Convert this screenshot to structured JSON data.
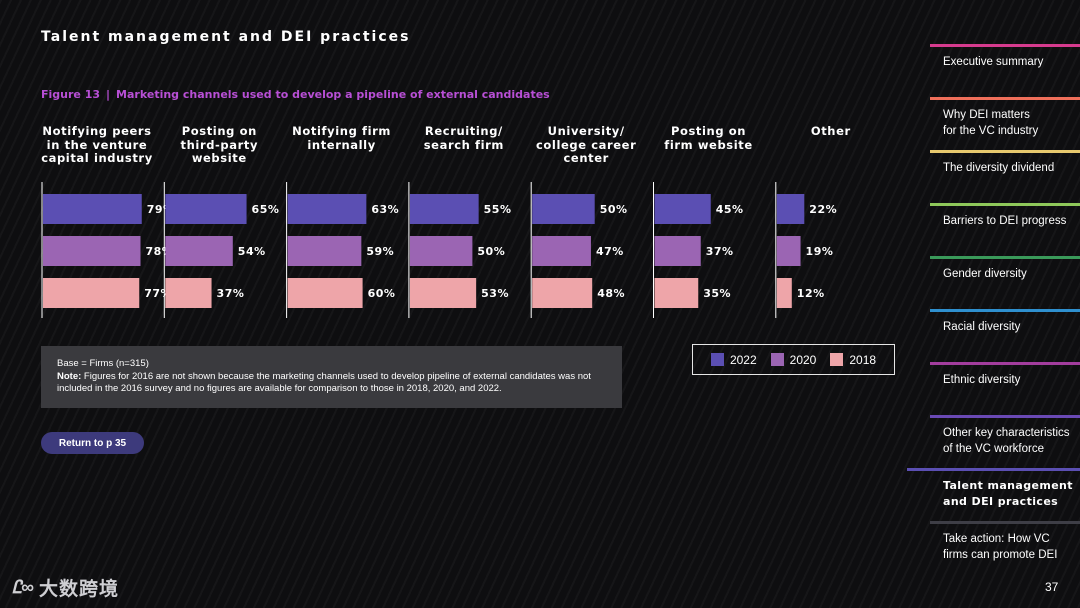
{
  "header": {
    "title": "Talent management and DEI practices",
    "figure_label": "Figure 13",
    "figure_separator": "|",
    "figure_title": "Marketing channels used to develop a pipeline of external candidates"
  },
  "colors": {
    "2022": "#5b4fb3",
    "2020": "#9b65b3",
    "2018": "#eea5a9",
    "accent": "#b84fd6",
    "button": "#3d3a7c"
  },
  "chart_data": {
    "type": "bar",
    "orientation": "horizontal",
    "title": "Marketing channels used to develop a pipeline of external candidates",
    "categories": [
      [
        "Notifying peers",
        "in the venture",
        "capital industry"
      ],
      [
        "Posting on",
        "third-party",
        "website"
      ],
      [
        "Notifying firm",
        "internally"
      ],
      [
        "Recruiting/",
        "search firm"
      ],
      [
        "University/",
        "college career",
        "center"
      ],
      [
        "Posting on",
        "firm website"
      ],
      [
        "Other"
      ]
    ],
    "series": [
      {
        "name": "2022",
        "values": [
          79,
          65,
          63,
          55,
          50,
          45,
          22
        ]
      },
      {
        "name": "2020",
        "values": [
          78,
          54,
          59,
          50,
          47,
          37,
          19
        ]
      },
      {
        "name": "2018",
        "values": [
          77,
          37,
          60,
          53,
          48,
          35,
          12
        ]
      }
    ],
    "value_suffix": "%",
    "xlim": [
      0,
      100
    ],
    "legend_position": "bottom-right"
  },
  "note": {
    "base": "Base = Firms (n=315)",
    "label": "Note:",
    "text": "Figures for 2016 are not shown because the marketing channels used to develop pipeline of external candidates was not included in the 2016 survey and no figures are available for comparison to those in 2018, 2020, and 2022."
  },
  "legend": {
    "items": [
      "2022",
      "2020",
      "2018"
    ]
  },
  "return_button": "Return to p 35",
  "sidebar": {
    "items": [
      {
        "lines": [
          "Executive summary"
        ],
        "color": "#d63b8e",
        "active": false
      },
      {
        "lines": [
          "Why DEI matters",
          "for the VC industry"
        ],
        "color": "#ef6f5a",
        "active": false
      },
      {
        "lines": [
          "The diversity dividend"
        ],
        "color": "#e7c96e",
        "active": false
      },
      {
        "lines": [
          "Barriers to DEI progress"
        ],
        "color": "#8fc85a",
        "active": false
      },
      {
        "lines": [
          "Gender diversity"
        ],
        "color": "#3a9a5a",
        "active": false
      },
      {
        "lines": [
          "Racial diversity"
        ],
        "color": "#2f90cf",
        "active": false
      },
      {
        "lines": [
          "Ethnic diversity"
        ],
        "color": "#a33d9e",
        "active": false
      },
      {
        "lines": [
          "Other key characteristics",
          "of the VC workforce"
        ],
        "color": "#6a49b5",
        "active": false
      },
      {
        "lines": [
          "Talent management",
          "and DEI practices"
        ],
        "color": "#5b4fb3",
        "active": true
      },
      {
        "lines": [
          "Take action: How VC",
          "firms can promote DEI"
        ],
        "color": "#3e3e46",
        "active": false
      }
    ]
  },
  "footer": {
    "logo_mark": "Ꮭ∞",
    "logo_text": "大数跨境",
    "page_number": "37"
  }
}
